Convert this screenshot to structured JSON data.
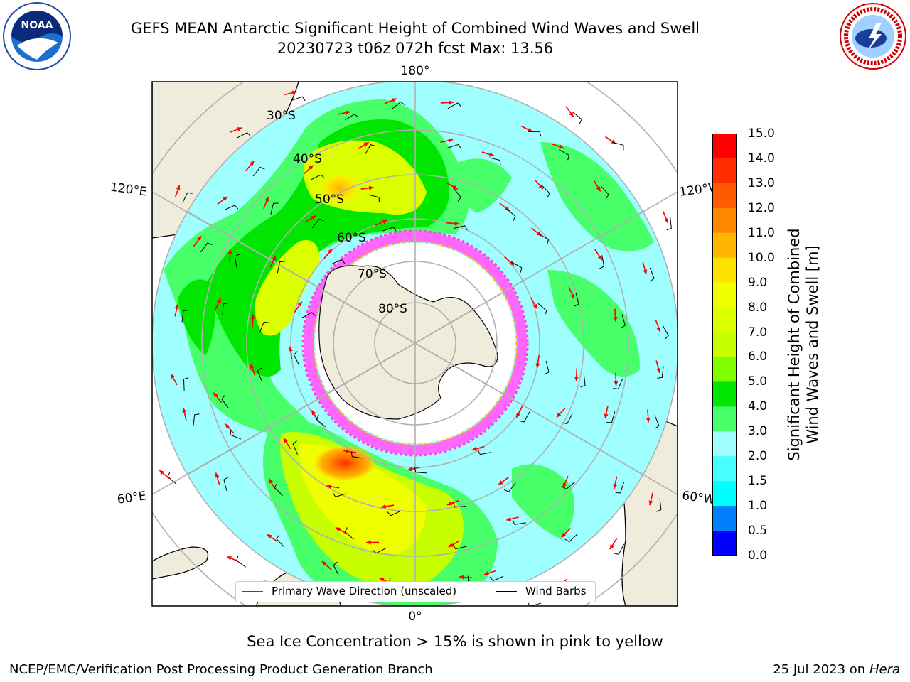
{
  "title": {
    "line1": "GEFS MEAN Antarctic Significant Height of Combined Wind Waves and Swell",
    "line2": "20230723 t06z 072h fcst   Max: 13.56"
  },
  "logos": {
    "left": {
      "name": "noaa-logo",
      "text": "NOAA"
    },
    "right": {
      "name": "nws-logo",
      "text": "NATIONAL WEATHER SERVICE"
    }
  },
  "map": {
    "lon_labels": {
      "top": "180°",
      "bottom": "0°",
      "left_upper": "120°E",
      "left_lower": "60°E",
      "right_upper": "120°W",
      "right_lower": "60°W"
    },
    "lat_labels": [
      "30°S",
      "40°S",
      "50°S",
      "60°S",
      "70°S",
      "80°S"
    ],
    "colors": {
      "ocean_base": "#9fffff",
      "land": "#efecdc",
      "grid": "#b0b0b0",
      "arrow": "#ff0000",
      "barb": "#000000"
    }
  },
  "legend": {
    "primary_wave": "Primary Wave Direction (unscaled)",
    "wind_barbs": "Wind Barbs"
  },
  "colorbar": {
    "label_line1": "Significant Height of Combined",
    "label_line2": "Wind Waves and Swell [m]",
    "ticks": [
      "15.0",
      "14.0",
      "13.0",
      "12.0",
      "11.0",
      "10.0",
      "9.0",
      "8.0",
      "7.0",
      "6.0",
      "5.0",
      "4.0",
      "3.0",
      "2.0",
      "1.5",
      "1.0",
      "0.5",
      "0.0"
    ],
    "colors_top_to_bottom": [
      "#ff0000",
      "#ff2d00",
      "#ff5a00",
      "#ff8700",
      "#ffb400",
      "#ffe100",
      "#f0ff00",
      "#dcff00",
      "#c8ff00",
      "#7dff00",
      "#00e600",
      "#46ff69",
      "#9fffff",
      "#46ffff",
      "#00ffff",
      "#0080ff",
      "#0000ff"
    ]
  },
  "notes": {
    "ice": "Sea Ice Concentration > 15% is shown in pink to yellow"
  },
  "footer": {
    "left": "NCEP/EMC/Verification Post Processing Product Generation Branch",
    "right_date": "25 Jul 2023 on",
    "right_host": "Hera"
  }
}
